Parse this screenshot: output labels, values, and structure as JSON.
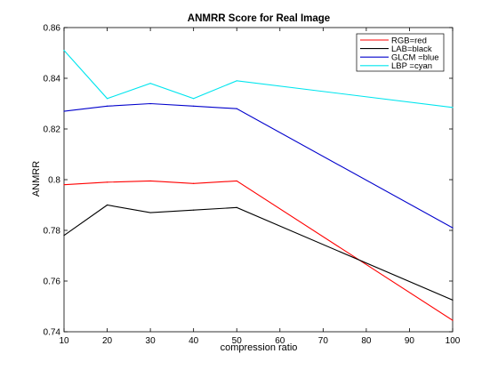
{
  "chart_data": {
    "type": "line",
    "title": "ANMRR Score for Real Image",
    "xlabel": "compression ratio",
    "ylabel": "ANMRR",
    "x": [
      10,
      20,
      30,
      40,
      50,
      100
    ],
    "xlim": [
      10,
      100
    ],
    "ylim": [
      0.74,
      0.86
    ],
    "xticks": [
      "10",
      "20",
      "30",
      "40",
      "50",
      "60",
      "70",
      "80",
      "90",
      "100"
    ],
    "yticks": [
      "0.74",
      "0.76",
      "0.78",
      "0.8",
      "0.82",
      "0.84",
      "0.86"
    ],
    "grid": false,
    "legend_position": "top-right",
    "series": [
      {
        "name": "RGB=red",
        "color": "#ff0000",
        "values": [
          0.798,
          0.799,
          0.7995,
          0.7985,
          0.7995,
          0.7445
        ]
      },
      {
        "name": "LAB=black",
        "color": "#000000",
        "values": [
          0.778,
          0.79,
          0.787,
          0.788,
          0.789,
          0.7525
        ]
      },
      {
        "name": "GLCM =blue",
        "color": "#0000cc",
        "values": [
          0.827,
          0.829,
          0.83,
          0.829,
          0.828,
          0.781
        ]
      },
      {
        "name": "LBP =cyan",
        "color": "#00e5ee",
        "values": [
          0.851,
          0.832,
          0.838,
          0.832,
          0.839,
          0.8285
        ]
      }
    ]
  }
}
